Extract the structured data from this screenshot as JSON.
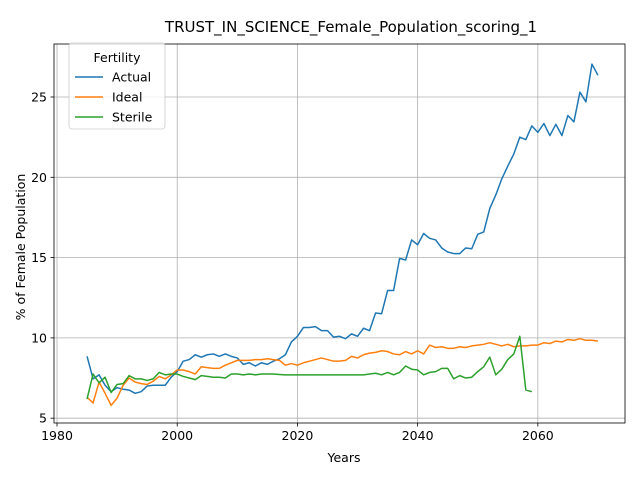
{
  "chart_data": {
    "type": "line",
    "title": "TRUST_IN_SCIENCE_Female_Population_scoring_1",
    "xlabel": "Years",
    "ylabel": "% of Female Population",
    "xlim": [
      1979.5,
      2074.5
    ],
    "ylim": [
      4.7,
      28.3
    ],
    "xticks": [
      1980,
      2000,
      2020,
      2040,
      2060
    ],
    "yticks": [
      5,
      10,
      15,
      20,
      25
    ],
    "grid": true,
    "legend": {
      "title": "Fertility",
      "placement": "top-left"
    },
    "series": [
      {
        "name": "Actual",
        "color": "#1f77b4",
        "x": [
          1985,
          1986,
          1987,
          1988,
          1989,
          1990,
          1991,
          1992,
          1993,
          1994,
          1995,
          1996,
          1997,
          1998,
          1999,
          2000,
          2001,
          2002,
          2003,
          2004,
          2005,
          2006,
          2007,
          2008,
          2009,
          2010,
          2011,
          2012,
          2013,
          2014,
          2015,
          2016,
          2017,
          2018,
          2019,
          2020,
          2021,
          2022,
          2023,
          2024,
          2025,
          2026,
          2027,
          2028,
          2029,
          2030,
          2031,
          2032,
          2033,
          2034,
          2035,
          2036,
          2037,
          2038,
          2039,
          2040,
          2041,
          2042,
          2043,
          2044,
          2045,
          2046,
          2047,
          2048,
          2049,
          2050,
          2051,
          2052,
          2053,
          2054,
          2055,
          2056,
          2057,
          2058,
          2059,
          2060,
          2061,
          2062,
          2063,
          2064,
          2065,
          2066,
          2067,
          2068,
          2069,
          2070
        ],
        "y": [
          8.85,
          7.45,
          7.7,
          7.05,
          6.65,
          6.9,
          6.8,
          6.75,
          6.55,
          6.65,
          7.0,
          7.05,
          7.05,
          7.05,
          7.55,
          7.9,
          8.55,
          8.65,
          8.95,
          8.8,
          8.95,
          9.0,
          8.85,
          9.0,
          8.85,
          8.75,
          8.35,
          8.45,
          8.25,
          8.45,
          8.35,
          8.55,
          8.7,
          8.95,
          9.75,
          10.1,
          10.65,
          10.65,
          10.7,
          10.45,
          10.45,
          10.05,
          10.1,
          9.95,
          10.25,
          10.1,
          10.6,
          10.45,
          11.55,
          11.5,
          12.95,
          12.95,
          14.95,
          14.85,
          16.1,
          15.8,
          16.5,
          16.2,
          16.1,
          15.6,
          15.35,
          15.25,
          15.25,
          15.6,
          15.55,
          16.45,
          16.6,
          18.05,
          18.9,
          19.9,
          20.7,
          21.45,
          22.5,
          22.35,
          23.2,
          22.8,
          23.35,
          22.6,
          23.3,
          22.6,
          23.85,
          23.45,
          25.3,
          24.7,
          27.05,
          26.35
        ]
      },
      {
        "name": "Ideal",
        "color": "#ff7f0e",
        "x": [
          1985,
          1986,
          1987,
          1988,
          1989,
          1990,
          1991,
          1992,
          1993,
          1994,
          1995,
          1996,
          1997,
          1998,
          1999,
          2000,
          2001,
          2002,
          2003,
          2004,
          2005,
          2006,
          2007,
          2008,
          2009,
          2010,
          2011,
          2012,
          2013,
          2014,
          2015,
          2016,
          2017,
          2018,
          2019,
          2020,
          2021,
          2022,
          2023,
          2024,
          2025,
          2026,
          2027,
          2028,
          2029,
          2030,
          2031,
          2032,
          2033,
          2034,
          2035,
          2036,
          2037,
          2038,
          2039,
          2040,
          2041,
          2042,
          2043,
          2044,
          2045,
          2046,
          2047,
          2048,
          2049,
          2050,
          2051,
          2052,
          2053,
          2054,
          2055,
          2056,
          2057,
          2058,
          2059,
          2060,
          2061,
          2062,
          2063,
          2064,
          2065,
          2066,
          2067,
          2068,
          2069,
          2070
        ],
        "y": [
          6.3,
          5.95,
          7.25,
          6.55,
          5.8,
          6.25,
          7.05,
          7.5,
          7.25,
          7.15,
          7.1,
          7.3,
          7.6,
          7.45,
          7.7,
          8.0,
          8.0,
          7.9,
          7.75,
          8.2,
          8.15,
          8.1,
          8.1,
          8.3,
          8.45,
          8.6,
          8.6,
          8.6,
          8.65,
          8.65,
          8.7,
          8.65,
          8.6,
          8.3,
          8.4,
          8.3,
          8.45,
          8.55,
          8.65,
          8.75,
          8.65,
          8.55,
          8.55,
          8.6,
          8.85,
          8.75,
          8.95,
          9.05,
          9.1,
          9.2,
          9.15,
          9.0,
          8.95,
          9.15,
          9.0,
          9.2,
          9.0,
          9.55,
          9.4,
          9.45,
          9.35,
          9.35,
          9.45,
          9.4,
          9.5,
          9.55,
          9.6,
          9.7,
          9.6,
          9.5,
          9.6,
          9.45,
          9.5,
          9.5,
          9.55,
          9.55,
          9.7,
          9.65,
          9.8,
          9.75,
          9.9,
          9.85,
          9.95,
          9.85,
          9.85,
          9.8
        ]
      },
      {
        "name": "Sterile",
        "color": "#2ca02c",
        "x": [
          1985,
          1986,
          1987,
          1988,
          1989,
          1990,
          1991,
          1992,
          1993,
          1994,
          1995,
          1996,
          1997,
          1998,
          1999,
          2000,
          2001,
          2002,
          2003,
          2004,
          2005,
          2006,
          2007,
          2008,
          2009,
          2010,
          2011,
          2012,
          2013,
          2014,
          2015,
          2016,
          2017,
          2018,
          2019,
          2020,
          2021,
          2022,
          2023,
          2024,
          2025,
          2026,
          2027,
          2028,
          2029,
          2030,
          2031,
          2032,
          2033,
          2034,
          2035,
          2036,
          2037,
          2038,
          2039,
          2040,
          2041,
          2042,
          2043,
          2044,
          2045,
          2046,
          2047,
          2048,
          2049,
          2050,
          2051,
          2052,
          2053,
          2054,
          2055,
          2056,
          2057,
          2058,
          2059
        ],
        "y": [
          6.2,
          7.75,
          7.2,
          7.55,
          6.6,
          7.1,
          7.15,
          7.65,
          7.45,
          7.45,
          7.35,
          7.45,
          7.85,
          7.7,
          7.75,
          7.75,
          7.6,
          7.5,
          7.4,
          7.65,
          7.6,
          7.55,
          7.55,
          7.5,
          7.75,
          7.75,
          7.7,
          7.75,
          7.7,
          7.75,
          7.75,
          7.75,
          7.72,
          7.7,
          7.7,
          7.7,
          7.7,
          7.7,
          7.7,
          7.7,
          7.7,
          7.7,
          7.7,
          7.7,
          7.7,
          7.7,
          7.7,
          7.75,
          7.8,
          7.7,
          7.85,
          7.7,
          7.85,
          8.25,
          8.05,
          8.0,
          7.7,
          7.85,
          7.9,
          8.1,
          8.1,
          7.45,
          7.65,
          7.5,
          7.55,
          7.9,
          8.2,
          8.8,
          7.7,
          8.05,
          8.65,
          9.0,
          10.1,
          6.75,
          6.65
        ]
      }
    ]
  }
}
